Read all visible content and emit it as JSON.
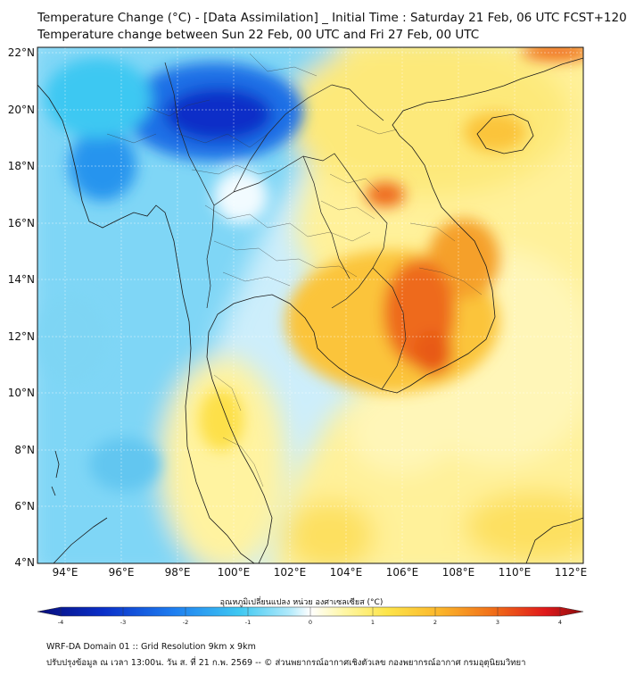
{
  "title": {
    "line1": "Temperature Change (°C) - [Data Assimilation] _ Initial Time : Saturday 21 Feb, 06 UTC FCST+120",
    "line2": "Temperature change between Sun 22 Feb, 00 UTC and Fri 27 Feb, 00 UTC"
  },
  "map": {
    "lon_labels": [
      "94°E",
      "96°E",
      "98°E",
      "100°E",
      "102°E",
      "104°E",
      "106°E",
      "108°E",
      "110°E",
      "112°E"
    ],
    "lat_labels": [
      "22°N",
      "20°N",
      "18°N",
      "16°N",
      "14°N",
      "12°N",
      "10°N",
      "8°N",
      "6°N",
      "4°N"
    ],
    "lon_range": [
      93,
      112.5
    ],
    "lat_range": [
      4,
      22.2
    ]
  },
  "colorbar": {
    "label": "อุณหภูมิเปลี่ยนแปลง หน่วย องศาเซลเซียส (°C)",
    "ticks": [
      "-4",
      "-3",
      "-2",
      "-1",
      "0",
      "1",
      "2",
      "3",
      "4"
    ],
    "min": -4,
    "max": 4,
    "colors": [
      "#070c7a",
      "#0a2fc8",
      "#1e7ef0",
      "#3ec8f2",
      "#aee9fb",
      "#ffffff",
      "#fff7a8",
      "#fde54a",
      "#fbb42a",
      "#f06a18",
      "#e0191b",
      "#8a0d0d"
    ]
  },
  "footer": {
    "line1": "WRF-DA Domain 01 :: Grid Resolution 9km x 9km",
    "line2": "ปรับปรุงข้อมูล ณ เวลา 13:00น. วัน ส. ที่ 21 ก.พ. 2569 -- © ส่วนพยากรณ์อากาศเชิงตัวเลข กองพยากรณ์อากาศ กรมอุตุนิยมวิทยา"
  }
}
